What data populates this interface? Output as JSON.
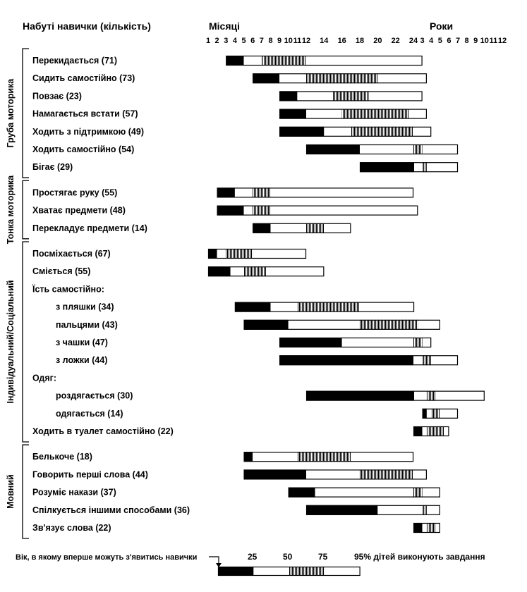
{
  "chart_data": {
    "type": "bar",
    "variant": "stacked-percentile-range",
    "title": "",
    "header_left": "Набуті навички (кількість)",
    "axis_label_months": "Місяці",
    "axis_label_years": "Роки",
    "month_ticks": [
      "1",
      "2",
      "3",
      "4",
      "5",
      "6",
      "7",
      "8",
      "9",
      "10",
      "11",
      "12",
      "14",
      "16",
      "18",
      "20",
      "22",
      "24"
    ],
    "year_ticks": [
      "3",
      "4",
      "5",
      "6",
      "7",
      "8",
      "9",
      "10",
      "11",
      "12"
    ],
    "percentile_legend": {
      "first_appear": "Вік, в якому вперше можуть з'явитись навички",
      "p25": "25",
      "p50": "50",
      "p75": "75",
      "p95": "95% дітей виконують завдання",
      "example": [
        1,
        5,
        9,
        13,
        17
      ]
    },
    "groups": [
      {
        "name": "Груба моторика",
        "rows": [
          {
            "label": "Перекидається (71)",
            "indent": 0,
            "values": [
              3,
              5,
              7,
              12,
              36
            ]
          },
          {
            "label": "Сидить самостійно (73)",
            "indent": 0,
            "values": [
              6,
              9,
              12,
              20,
              42
            ]
          },
          {
            "label": "Повзає (23)",
            "indent": 0,
            "values": [
              9,
              11,
              15,
              19,
              36
            ]
          },
          {
            "label": "Намагається встати (57)",
            "indent": 0,
            "values": [
              9,
              12,
              16,
              23.5,
              42
            ]
          },
          {
            "label": "Ходить з підтримкою (49)",
            "indent": 0,
            "values": [
              9,
              14,
              17,
              24,
              48
            ]
          },
          {
            "label": "Ходить самостійно (54)",
            "indent": 0,
            "values": [
              12,
              18,
              24,
              36,
              84
            ]
          },
          {
            "label": "Бігає (29)",
            "indent": 0,
            "values": [
              18,
              25,
              36,
              42,
              84
            ]
          }
        ]
      },
      {
        "name": "Тонка моторика",
        "rows": [
          {
            "label": "Простягає руку (55)",
            "indent": 0,
            "values": [
              2,
              4,
              6,
              8,
              24
            ]
          },
          {
            "label": "Хватає предмети (48)",
            "indent": 0,
            "values": [
              2,
              5,
              6,
              8,
              30
            ]
          },
          {
            "label": "Перекладує предмети (14)",
            "indent": 0,
            "values": [
              6,
              8,
              12,
              14,
              17
            ]
          }
        ]
      },
      {
        "name": "Індивідуальний/Соціальний",
        "rows": [
          {
            "label": "Посміхається (67)",
            "indent": 0,
            "values": [
              1,
              2,
              3,
              6,
              12
            ]
          },
          {
            "label": "Сміється (55)",
            "indent": 0,
            "values": [
              1,
              3.5,
              5,
              7.5,
              14
            ]
          },
          {
            "label": "Їсть самостійно:",
            "indent": 0,
            "values": null
          },
          {
            "label": "з пляшки (34)",
            "indent": 1,
            "values": [
              4,
              8,
              11,
              18,
              25
            ]
          },
          {
            "label": "пальцями (43)",
            "indent": 1,
            "values": [
              5,
              10,
              18,
              30,
              60
            ]
          },
          {
            "label": "з чашки (47)",
            "indent": 1,
            "values": [
              9,
              16,
              24,
              36,
              48
            ]
          },
          {
            "label": "з ложки (44)",
            "indent": 1,
            "values": [
              9,
              24,
              36,
              48,
              84
            ]
          },
          {
            "label": "Одяг:",
            "indent": 0,
            "values": null
          },
          {
            "label": "роздягається (30)",
            "indent": 1,
            "values": [
              12,
              25,
              42,
              54,
              120
            ]
          },
          {
            "label": "одягається (14)",
            "indent": 1,
            "values": [
              36,
              42,
              48,
              60,
              84
            ]
          },
          {
            "label": "Ходить в туалет самостійно (22)",
            "indent": 0,
            "values": [
              24,
              36,
              42,
              66,
              72
            ]
          }
        ]
      },
      {
        "name": "Мовний",
        "rows": [
          {
            "label": "Белькоче (18)",
            "indent": 0,
            "values": [
              5,
              6,
              11,
              17,
              24
            ]
          },
          {
            "label": "Говорить перші слова (44)",
            "indent": 0,
            "values": [
              5,
              12,
              18,
              24,
              42
            ]
          },
          {
            "label": "Розуміє накази (37)",
            "indent": 0,
            "values": [
              10,
              13,
              24,
              36,
              60
            ]
          },
          {
            "label": "Спілкується іншими способами (36)",
            "indent": 0,
            "values": [
              12,
              20,
              36,
              42,
              60
            ]
          },
          {
            "label": "Зв'язує слова (22)",
            "indent": 0,
            "values": [
              24,
              36,
              42,
              54,
              60
            ]
          }
        ]
      }
    ]
  }
}
